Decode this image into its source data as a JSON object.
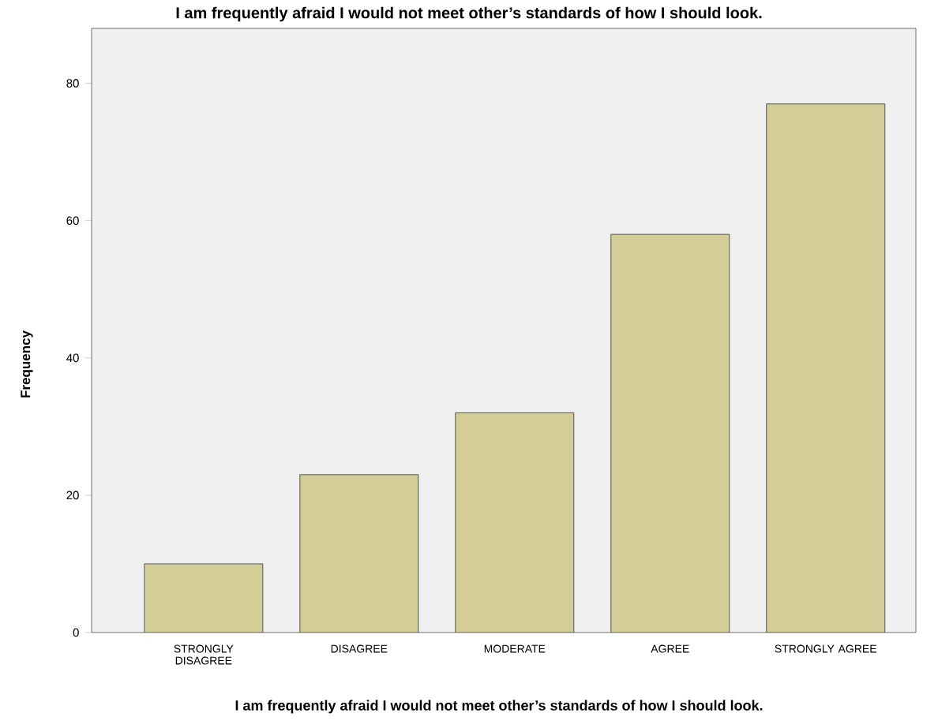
{
  "chart_data": {
    "type": "bar",
    "title": "I am frequently afraid I would not meet other’s standards of how I should look.",
    "xlabel": "I am frequently afraid I would not meet other’s standards of how I should look.",
    "ylabel": "Frequency",
    "categories": [
      "STRONGLY DISAGREE",
      "DISAGREE",
      "MODERATE",
      "AGREE",
      "STRONGLY AGREE"
    ],
    "values": [
      10,
      23,
      32,
      58,
      77
    ],
    "color": "#d3ce97",
    "ylim": [
      0,
      88
    ],
    "yticks": [
      0,
      20,
      40,
      60,
      80
    ],
    "grid": false
  }
}
